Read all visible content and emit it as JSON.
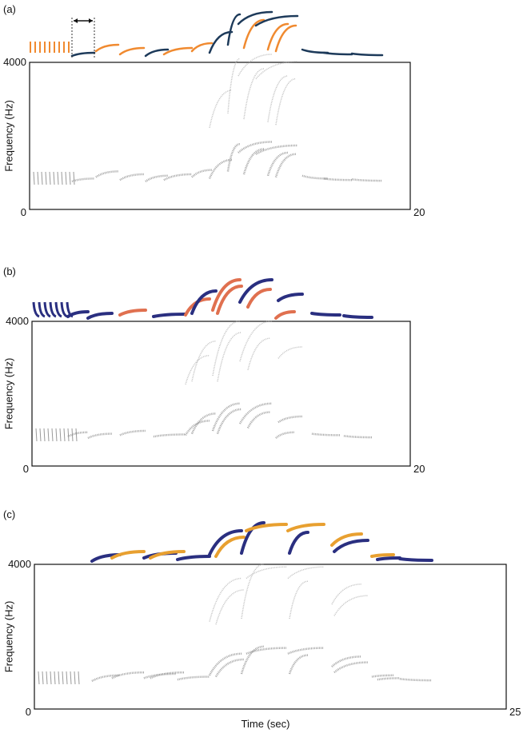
{
  "panels": [
    {
      "label": "(a)",
      "y_label": "Frequency (Hz)",
      "y_max": "4000",
      "y_min": "0",
      "x_max": "20"
    },
    {
      "label": "(b)",
      "y_label": "Frequency (Hz)",
      "y_max": "4000",
      "y_min": "0",
      "x_max": "20"
    },
    {
      "label": "(c)",
      "y_label": "Frequency (Hz)",
      "y_max": "4000",
      "y_min": "0",
      "x_max": "25"
    }
  ],
  "x_label": "Time (sec)"
}
